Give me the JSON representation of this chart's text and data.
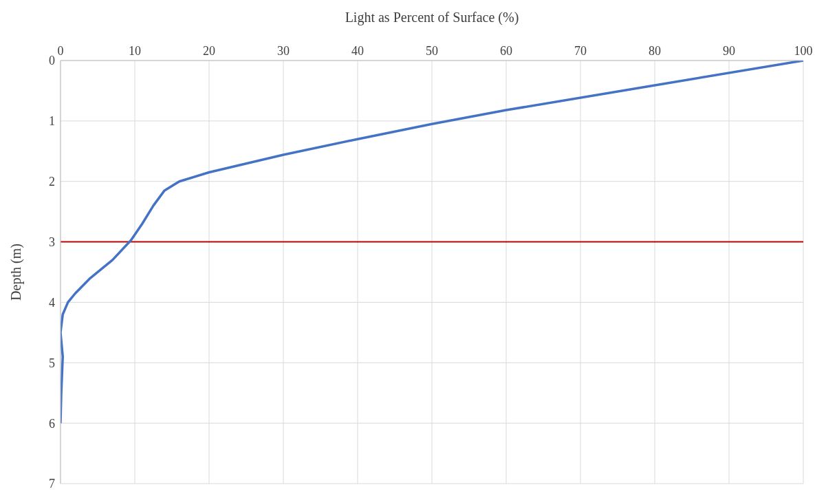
{
  "chart_data": {
    "type": "line",
    "xlabel": "Light as Percent of Surface (%)",
    "ylabel": "Depth (m)",
    "x": [
      100,
      80,
      60,
      50,
      40,
      30,
      20,
      16,
      14,
      12.5,
      11,
      9.5,
      7,
      4,
      2,
      1,
      0.3,
      0,
      0.3,
      0.1,
      0
    ],
    "series": [
      {
        "color": "#4472c4",
        "values": [
          0,
          0.41,
          0.82,
          1.05,
          1.3,
          1.56,
          1.85,
          2.0,
          2.15,
          2.4,
          2.7,
          2.97,
          3.3,
          3.6,
          3.85,
          4.0,
          4.2,
          4.5,
          4.9,
          5.5,
          6
        ]
      }
    ],
    "xlim": [
      0,
      100
    ],
    "xticks": [
      0,
      10,
      20,
      30,
      40,
      50,
      60,
      70,
      80,
      90,
      100
    ],
    "ylim": [
      7,
      0
    ],
    "yticks": [
      0,
      1,
      2,
      3,
      4,
      5,
      6,
      7
    ],
    "ref_lines": [
      {
        "axis": "y",
        "value": 3,
        "color": "#c00000"
      }
    ],
    "grid": true,
    "marker": "none",
    "line_style": "solid"
  }
}
